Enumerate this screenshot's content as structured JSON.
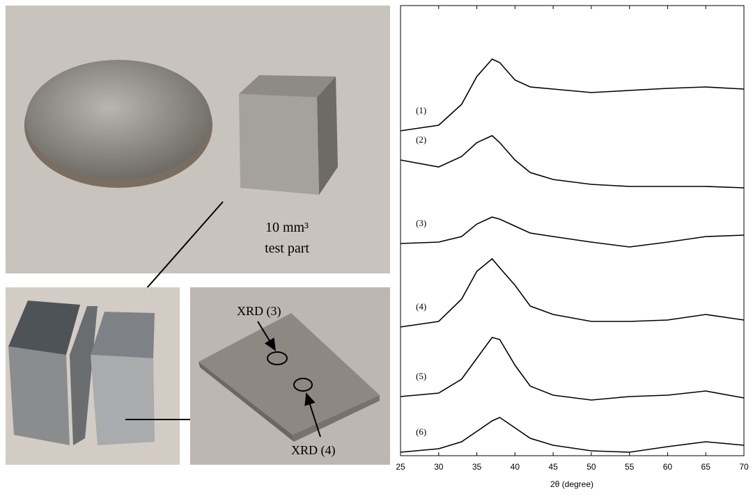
{
  "figure": {
    "annotations": {
      "part": "10 mm³",
      "part_desc": "test part",
      "xrd3": "XRD (3)",
      "xrd4": "XRD (4)"
    }
  },
  "chart_data": {
    "type": "line",
    "xlabel": "2θ (degree)",
    "x": [
      25,
      30,
      33,
      35,
      37,
      38,
      40,
      42,
      45,
      50,
      55,
      60,
      65,
      70
    ],
    "series": [
      {
        "name": "(1)",
        "color": "#000000",
        "values": [
          467,
          475,
          505,
          545,
          570,
          565,
          540,
          530,
          527,
          522,
          525,
          528,
          530,
          527
        ]
      },
      {
        "name": "(2)",
        "color": "#000000",
        "values": [
          425,
          415,
          430,
          450,
          460,
          450,
          425,
          407,
          397,
          390,
          387,
          387,
          387,
          385
        ]
      },
      {
        "name": "(3)",
        "color": "#000000",
        "values": [
          305,
          307,
          315,
          333,
          343,
          340,
          330,
          320,
          315,
          307,
          300,
          307,
          315,
          317
        ]
      },
      {
        "name": "(4)",
        "color": "#000000",
        "values": [
          185,
          193,
          225,
          265,
          283,
          270,
          245,
          215,
          203,
          193,
          193,
          195,
          203,
          195
        ]
      },
      {
        "name": "(5)",
        "color": "#000000",
        "values": [
          85,
          90,
          110,
          140,
          170,
          167,
          130,
          100,
          87,
          80,
          85,
          87,
          93,
          83
        ]
      },
      {
        "name": "(6)",
        "color": "#000000",
        "values": [
          5,
          10,
          20,
          35,
          50,
          55,
          40,
          25,
          15,
          7,
          5,
          13,
          20,
          15
        ]
      }
    ],
    "xlim": [
      25,
      70
    ],
    "xticks": [
      25,
      30,
      35,
      40,
      45,
      50,
      55,
      60,
      65,
      70
    ],
    "ylim": [
      0,
      647
    ],
    "grid": false
  }
}
